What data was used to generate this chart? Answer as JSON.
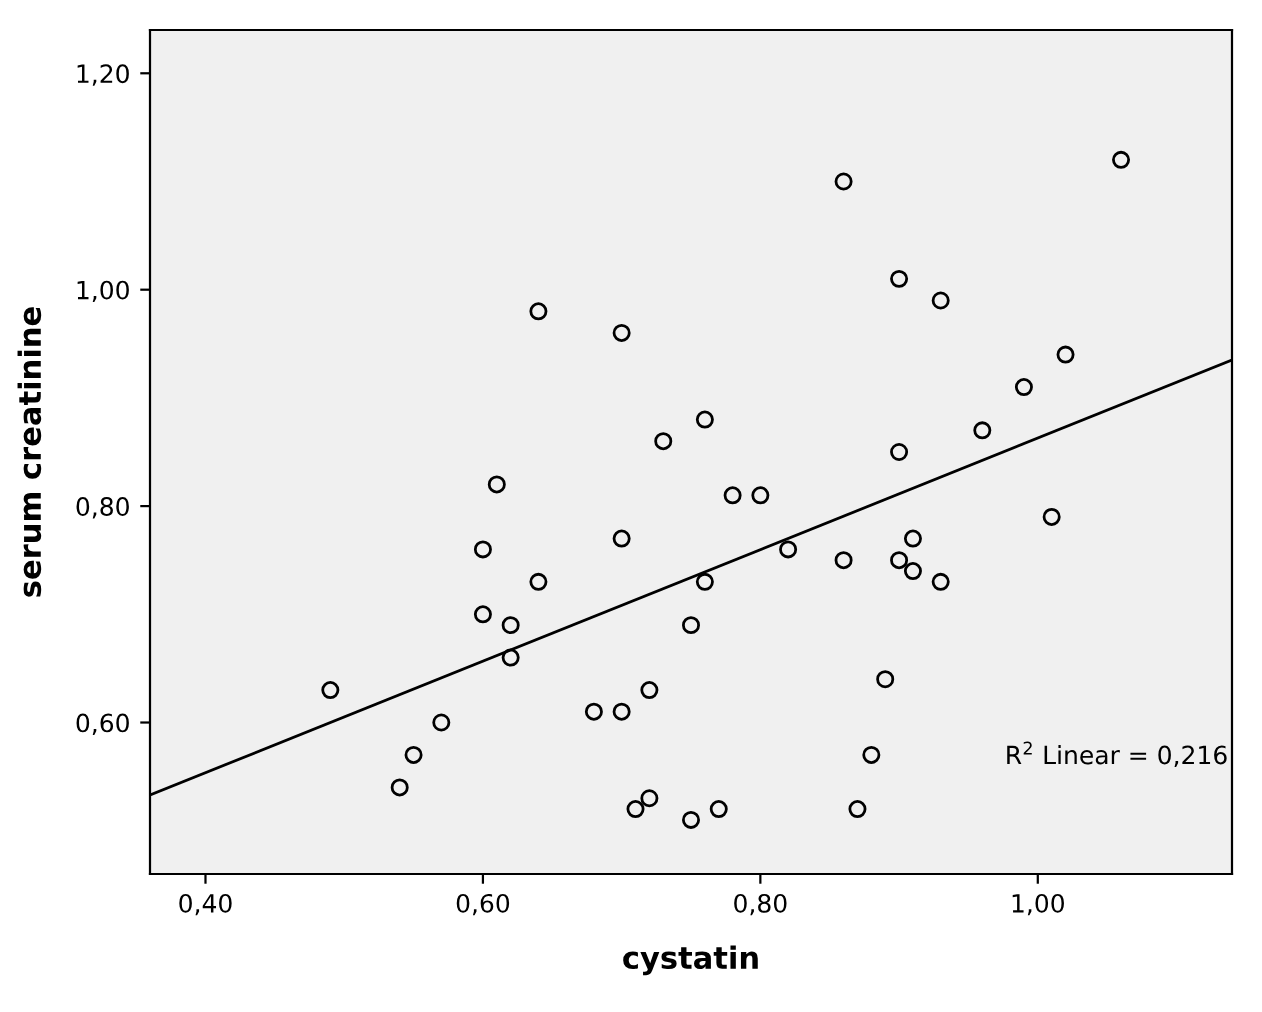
{
  "chart_data": {
    "type": "scatter",
    "xlabel": "cystatin",
    "ylabel": "serum creatinine",
    "annotations": [
      "R$^{2}$ Linear = 0,216"
    ],
    "xlim": [
      0.36,
      1.14
    ],
    "ylim": [
      0.46,
      1.24
    ],
    "xticks": [
      {
        "value": 0.4,
        "label": "0,40"
      },
      {
        "value": 0.6,
        "label": "0,60"
      },
      {
        "value": 0.8,
        "label": "0,80"
      },
      {
        "value": 1.0,
        "label": "1,00"
      }
    ],
    "yticks": [
      {
        "value": 0.6,
        "label": "0,60"
      },
      {
        "value": 0.8,
        "label": "0,80"
      },
      {
        "value": 1.0,
        "label": "1,00"
      },
      {
        "value": 1.2,
        "label": "1,20"
      }
    ],
    "grid": false,
    "legend": false,
    "series": [
      {
        "marker": "circle",
        "color": "#000000",
        "x": [
          0.49,
          0.55,
          0.54,
          0.57,
          0.6,
          0.6,
          0.61,
          0.62,
          0.62,
          0.64,
          0.68,
          0.7,
          0.7,
          0.72,
          0.71,
          0.72,
          0.75,
          0.75,
          0.64,
          0.7,
          0.73,
          0.86,
          1.06,
          0.9,
          0.93,
          1.02,
          0.99,
          0.96,
          0.9,
          0.76,
          0.78,
          0.8,
          1.01,
          0.82,
          0.86,
          0.91,
          0.9,
          0.91,
          0.93,
          0.76,
          0.89,
          0.88,
          0.87,
          0.77
        ],
        "values": [
          0.63,
          0.57,
          0.54,
          0.6,
          0.7,
          0.76,
          0.82,
          0.69,
          0.66,
          0.73,
          0.61,
          0.61,
          0.77,
          0.63,
          0.52,
          0.53,
          0.51,
          0.69,
          0.98,
          0.96,
          0.86,
          1.1,
          1.12,
          1.01,
          0.99,
          0.94,
          0.91,
          0.87,
          0.85,
          0.88,
          0.81,
          0.81,
          0.79,
          0.76,
          0.75,
          0.77,
          0.75,
          0.74,
          0.73,
          0.73,
          0.64,
          0.57,
          0.52,
          0.52
        ]
      },
      {
        "type": "line",
        "color": "#000000",
        "x": [
          0.36,
          1.14
        ],
        "values": [
          0.533,
          0.935
        ],
        "line_style": "solid",
        "marker": "none"
      }
    ]
  }
}
